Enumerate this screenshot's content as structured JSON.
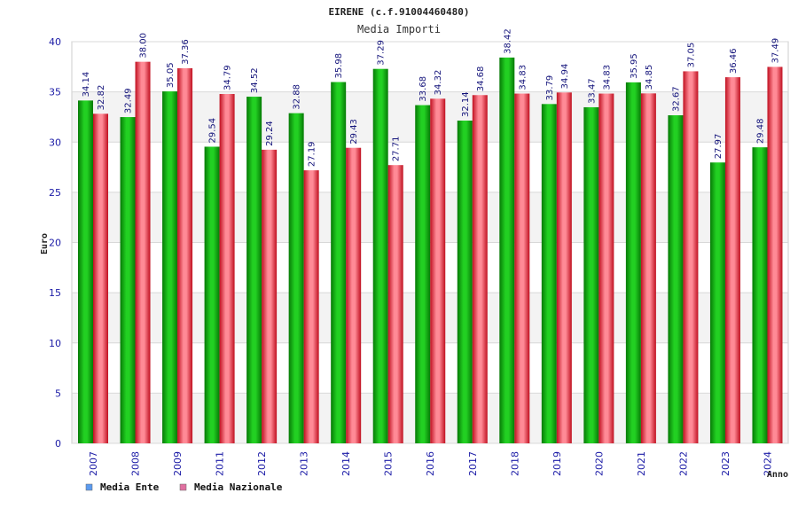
{
  "chart_data": {
    "type": "bar",
    "title": "EIRENE (c.f.91004460480)",
    "subtitle": "Media Importi",
    "xlabel": "Anno",
    "ylabel": "Euro",
    "ylim": [
      0,
      40
    ],
    "yticks": [
      0,
      5,
      10,
      15,
      20,
      25,
      30,
      35,
      40
    ],
    "grid": true,
    "legend_position": "bottom-left",
    "categories": [
      "2007",
      "2008",
      "2009",
      "2011",
      "2012",
      "2013",
      "2014",
      "2015",
      "2016",
      "2017",
      "2018",
      "2019",
      "2020",
      "2021",
      "2022",
      "2023",
      "2024"
    ],
    "series": [
      {
        "name": "Media Ente",
        "color": "#10b010",
        "legend_color": "#5b9bf0",
        "values": [
          34.14,
          32.49,
          35.05,
          29.54,
          34.52,
          32.88,
          35.98,
          37.29,
          33.68,
          32.14,
          38.42,
          33.79,
          33.47,
          35.95,
          32.67,
          27.97,
          29.48
        ],
        "labels": [
          "34.14",
          "32.49",
          "35.05",
          "29.54",
          "34.52",
          "32.88",
          "35.98",
          "37.29",
          "33.68",
          "32.14",
          "38.42",
          "33.79",
          "33.47",
          "35.95",
          "32.67",
          "27.97",
          "29.48"
        ]
      },
      {
        "name": "Media Nazionale",
        "color": "#e83040",
        "legend_color": "#e070a0",
        "values": [
          32.82,
          38.0,
          37.36,
          34.79,
          29.24,
          27.19,
          29.43,
          27.71,
          34.32,
          34.68,
          34.83,
          34.94,
          34.83,
          34.85,
          37.05,
          36.46,
          37.49
        ],
        "labels": [
          "32.82",
          "38.00",
          "37.36",
          "34.79",
          "29.24",
          "27.19",
          "29.43",
          "27.71",
          "34.32",
          "34.68",
          "34.83",
          "34.94",
          "34.83",
          "34.85",
          "37.05",
          "36.46",
          "37.49"
        ]
      }
    ]
  }
}
